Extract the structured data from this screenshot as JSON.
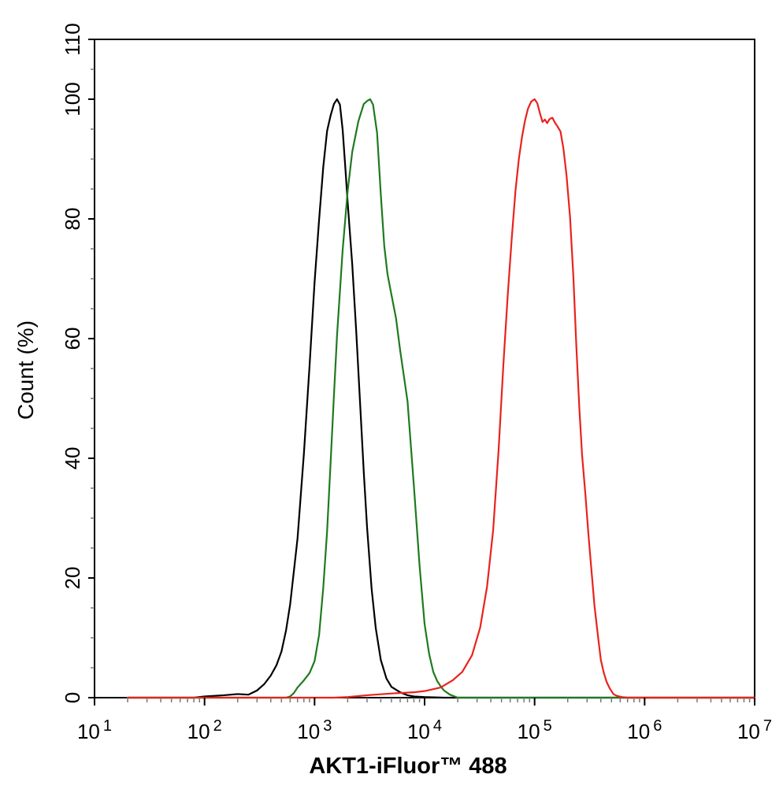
{
  "chart_data": {
    "type": "line",
    "title": "",
    "xlabel": "AKT1-iFluor™ 488",
    "ylabel": "Count  (%)",
    "x_scale": "log",
    "xlim": [
      10,
      10000000
    ],
    "ylim": [
      0,
      110
    ],
    "grid": false,
    "legend": "none",
    "x_ticks": [
      {
        "value": 10,
        "base": "10",
        "exp": "1"
      },
      {
        "value": 100,
        "base": "10",
        "exp": "2"
      },
      {
        "value": 1000,
        "base": "10",
        "exp": "3"
      },
      {
        "value": 10000,
        "base": "10",
        "exp": "4"
      },
      {
        "value": 100000,
        "base": "10",
        "exp": "5"
      },
      {
        "value": 1000000,
        "base": "10",
        "exp": "6"
      },
      {
        "value": 10000000,
        "base": "10",
        "exp": "7"
      }
    ],
    "y_ticks": [
      {
        "value": 0,
        "label": "0"
      },
      {
        "value": 20,
        "label": "20"
      },
      {
        "value": 40,
        "label": "40"
      },
      {
        "value": 60,
        "label": "60"
      },
      {
        "value": 80,
        "label": "80"
      },
      {
        "value": 100,
        "label": "100"
      },
      {
        "value": 110,
        "label": "110"
      }
    ],
    "series": [
      {
        "color": "#000000",
        "points": [
          [
            20,
            0
          ],
          [
            80,
            0
          ],
          [
            100,
            0.2
          ],
          [
            150,
            0.4
          ],
          [
            200,
            0.6
          ],
          [
            250,
            0.5
          ],
          [
            300,
            1.2
          ],
          [
            350,
            2.3
          ],
          [
            400,
            3.7
          ],
          [
            450,
            5.4
          ],
          [
            500,
            7.7
          ],
          [
            550,
            11.2
          ],
          [
            600,
            15.6
          ],
          [
            700,
            26.6
          ],
          [
            800,
            40.8
          ],
          [
            900,
            55.4
          ],
          [
            1000,
            69.4
          ],
          [
            1100,
            79.9
          ],
          [
            1200,
            88.7
          ],
          [
            1300,
            94.7
          ],
          [
            1400,
            97.3
          ],
          [
            1500,
            99.2
          ],
          [
            1600,
            100
          ],
          [
            1700,
            99.1
          ],
          [
            1800,
            94.9
          ],
          [
            1900,
            88.8
          ],
          [
            2000,
            82.7
          ],
          [
            2200,
            72.4
          ],
          [
            2400,
            60.7
          ],
          [
            2600,
            48.8
          ],
          [
            2800,
            37.7
          ],
          [
            3000,
            28.5
          ],
          [
            3300,
            18.2
          ],
          [
            3600,
            11.6
          ],
          [
            4000,
            6.3
          ],
          [
            4500,
            3.2
          ],
          [
            5000,
            1.8
          ],
          [
            6000,
            0.9
          ],
          [
            7000,
            0.4
          ],
          [
            8000,
            0.2
          ],
          [
            10000,
            0.1
          ],
          [
            15000,
            0
          ],
          [
            10000000,
            0
          ]
        ]
      },
      {
        "color": "#1f7a1f",
        "points": [
          [
            20,
            0
          ],
          [
            550,
            0
          ],
          [
            600,
            0.2
          ],
          [
            650,
            0.8
          ],
          [
            700,
            1.7
          ],
          [
            800,
            2.9
          ],
          [
            900,
            4.1
          ],
          [
            1000,
            6.1
          ],
          [
            1100,
            10.5
          ],
          [
            1200,
            18.4
          ],
          [
            1300,
            27.8
          ],
          [
            1400,
            39.4
          ],
          [
            1500,
            50.5
          ],
          [
            1600,
            60.5
          ],
          [
            1800,
            74.8
          ],
          [
            2000,
            84.7
          ],
          [
            2200,
            91.2
          ],
          [
            2500,
            96.3
          ],
          [
            2800,
            99.2
          ],
          [
            3000,
            99.7
          ],
          [
            3200,
            100
          ],
          [
            3400,
            99.1
          ],
          [
            3700,
            94.4
          ],
          [
            4000,
            84.1
          ],
          [
            4300,
            75.5
          ],
          [
            4600,
            70.8
          ],
          [
            5000,
            67.3
          ],
          [
            5500,
            63.4
          ],
          [
            6000,
            58.0
          ],
          [
            7000,
            49.5
          ],
          [
            8000,
            35.3
          ],
          [
            9000,
            22.1
          ],
          [
            10000,
            12.3
          ],
          [
            11000,
            7.3
          ],
          [
            12000,
            4.3
          ],
          [
            13000,
            2.8
          ],
          [
            14000,
            1.9
          ],
          [
            15000,
            1.2
          ],
          [
            17000,
            0.5
          ],
          [
            20000,
            0
          ],
          [
            10000000,
            0
          ]
        ]
      },
      {
        "color": "#e8231c",
        "points": [
          [
            20,
            0
          ],
          [
            1500,
            0
          ],
          [
            2000,
            0.1
          ],
          [
            3000,
            0.4
          ],
          [
            5000,
            0.7
          ],
          [
            8000,
            0.9
          ],
          [
            10000,
            1.1
          ],
          [
            14000,
            1.7
          ],
          [
            18000,
            2.9
          ],
          [
            22000,
            4.3
          ],
          [
            27000,
            7.1
          ],
          [
            32000,
            11.7
          ],
          [
            37000,
            18.6
          ],
          [
            42000,
            28.0
          ],
          [
            47000,
            41.2
          ],
          [
            52000,
            55.6
          ],
          [
            57000,
            67.3
          ],
          [
            62000,
            76.8
          ],
          [
            67000,
            84.7
          ],
          [
            72000,
            90.1
          ],
          [
            77000,
            93.8
          ],
          [
            82000,
            96.5
          ],
          [
            87000,
            98.4
          ],
          [
            93000,
            99.6
          ],
          [
            100000,
            100
          ],
          [
            106000,
            99.3
          ],
          [
            112000,
            97.6
          ],
          [
            118000,
            96.2
          ],
          [
            124000,
            96.6
          ],
          [
            130000,
            96.0
          ],
          [
            137000,
            96.7
          ],
          [
            145000,
            96.9
          ],
          [
            153000,
            96.1
          ],
          [
            162000,
            95.4
          ],
          [
            172000,
            94.6
          ],
          [
            183000,
            91.7
          ],
          [
            195000,
            87.3
          ],
          [
            210000,
            80.3
          ],
          [
            225000,
            70.4
          ],
          [
            240000,
            58.4
          ],
          [
            255000,
            48.4
          ],
          [
            270000,
            40.6
          ],
          [
            290000,
            33.8
          ],
          [
            310000,
            26.8
          ],
          [
            330000,
            20.9
          ],
          [
            350000,
            15.4
          ],
          [
            375000,
            10.6
          ],
          [
            400000,
            6.3
          ],
          [
            425000,
            4.2
          ],
          [
            450000,
            2.7
          ],
          [
            480000,
            1.6
          ],
          [
            520000,
            0.6
          ],
          [
            560000,
            0.3
          ],
          [
            620000,
            0.1
          ],
          [
            700000,
            0
          ],
          [
            10000000,
            0
          ]
        ]
      }
    ]
  }
}
